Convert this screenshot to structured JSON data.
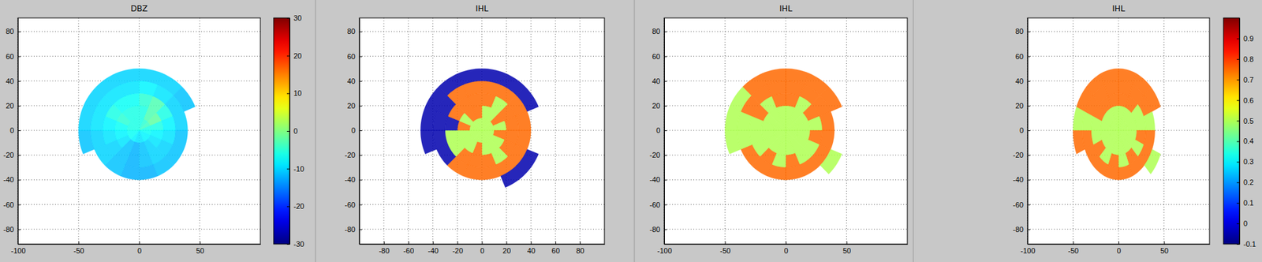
{
  "chart_data": [
    {
      "type": "polar_heatmap",
      "title": "DBZ",
      "xlim": [
        -100,
        100
      ],
      "ylim": [
        -92,
        91
      ],
      "xticks": [
        -100,
        -50,
        0,
        50
      ],
      "yticks": [
        -80,
        -60,
        -40,
        -20,
        0,
        20,
        40,
        60,
        80
      ],
      "grid": true,
      "azimuth_edges": [
        0,
        22.5,
        45,
        67.5,
        90,
        112.5,
        135,
        157.5,
        180,
        202.5,
        225,
        247.5,
        270,
        292.5,
        315,
        337.5,
        360
      ],
      "range_edges": [
        0,
        10,
        20,
        30,
        40,
        50
      ],
      "cells": [
        [
          -6,
          -5,
          -4,
          -6,
          -7,
          -8,
          -8,
          -9,
          -9,
          -8,
          -7,
          -7,
          -6,
          -6,
          -6,
          -6
        ],
        [
          -6,
          -3,
          -2,
          -6,
          -8,
          -9,
          -10,
          -11,
          -12,
          -11,
          -9,
          -8,
          -7,
          -5,
          -6,
          -6
        ],
        [
          -5,
          -3,
          -6,
          -8,
          -9,
          -10,
          -10,
          -11,
          -12,
          -11,
          -10,
          -9,
          -8,
          -6,
          -7,
          -7
        ],
        [
          -8,
          -9,
          -10,
          -10,
          -11,
          -11,
          -11,
          -12,
          -12,
          -11,
          -10,
          -10,
          -9,
          -9,
          -9,
          -9
        ],
        [
          -10,
          -10,
          -11,
          null,
          null,
          null,
          null,
          null,
          null,
          null,
          null,
          -11,
          -10,
          -10,
          -10,
          -10
        ]
      ],
      "color_range": [
        -30,
        30
      ],
      "colorbar_ticks": [
        -30,
        -20,
        -10,
        0,
        10,
        20,
        30
      ]
    },
    {
      "type": "polar_heatmap",
      "title": "IHL",
      "xlim": [
        -100,
        100
      ],
      "ylim": [
        -92,
        91
      ],
      "xticks": [
        -80,
        -60,
        -40,
        -20,
        0,
        20,
        40,
        60,
        80
      ],
      "yticks": [
        -80,
        -60,
        -40,
        -20,
        0,
        20,
        40,
        60,
        80
      ],
      "grid": true,
      "azimuth_edges": [
        0,
        22.5,
        45,
        67.5,
        90,
        112.5,
        135,
        157.5,
        180,
        202.5,
        225,
        247.5,
        270,
        292.5,
        315,
        337.5,
        360
      ],
      "range_edges": [
        0,
        10,
        20,
        30,
        40,
        50
      ],
      "cells": [
        [
          0.5,
          0.5,
          0.5,
          0.5,
          0.5,
          0.5,
          0.5,
          0.5,
          0.5,
          0.5,
          0.5,
          0.5,
          0.5,
          0.5,
          0.5,
          0.5
        ],
        [
          0.5,
          0.5,
          0.75,
          0.5,
          0.75,
          0.5,
          0.5,
          0.5,
          0.75,
          0.5,
          0.5,
          0.5,
          0.75,
          0.5,
          0.75,
          0.75
        ],
        [
          0.75,
          0.5,
          0.75,
          0.75,
          0.75,
          0.75,
          0.5,
          0.75,
          0.75,
          0.75,
          0.5,
          0.5,
          -0.05,
          0.75,
          0.75,
          0.75
        ],
        [
          0.75,
          0.75,
          0.75,
          0.75,
          0.75,
          0.75,
          0.75,
          0.75,
          0.75,
          0.75,
          -0.05,
          -0.05,
          -0.05,
          -0.05,
          0.75,
          0.75
        ],
        [
          -0.05,
          -0.05,
          -0.05,
          null,
          null,
          -0.05,
          -0.05,
          null,
          null,
          null,
          null,
          -0.05,
          -0.05,
          -0.05,
          -0.05,
          -0.05
        ]
      ],
      "color_range": [
        -0.1,
        1.0
      ]
    },
    {
      "type": "polar_heatmap",
      "title": "IHL",
      "xlim": [
        -100,
        100
      ],
      "ylim": [
        -92,
        91
      ],
      "xticks": [
        -100,
        -50,
        0,
        50
      ],
      "yticks": [
        -80,
        -60,
        -40,
        -20,
        0,
        20,
        40,
        60,
        80
      ],
      "grid": true,
      "azimuth_edges": [
        0,
        22.5,
        45,
        67.5,
        90,
        112.5,
        135,
        157.5,
        180,
        202.5,
        225,
        247.5,
        270,
        292.5,
        315,
        337.5,
        360
      ],
      "range_edges": [
        0,
        10,
        20,
        30,
        40,
        50
      ],
      "cells": [
        [
          0.5,
          0.5,
          0.5,
          0.5,
          0.5,
          0.5,
          0.5,
          0.5,
          0.5,
          0.5,
          0.5,
          0.5,
          0.5,
          0.5,
          0.5,
          0.5
        ],
        [
          0.5,
          0.5,
          0.5,
          0.5,
          0.5,
          0.5,
          0.5,
          0.5,
          0.5,
          0.5,
          0.5,
          0.5,
          0.5,
          0.5,
          0.5,
          0.5
        ],
        [
          0.75,
          0.5,
          0.75,
          0.5,
          0.75,
          0.5,
          0.5,
          0.75,
          0.5,
          0.75,
          0.5,
          0.5,
          0.5,
          0.75,
          0.5,
          0.75
        ],
        [
          0.75,
          0.75,
          0.75,
          0.75,
          0.75,
          0.75,
          0.75,
          0.75,
          0.75,
          0.75,
          0.75,
          0.5,
          0.5,
          0.75,
          0.75,
          0.75
        ],
        [
          0.75,
          0.75,
          0.75,
          null,
          null,
          0.5,
          null,
          null,
          null,
          null,
          null,
          0.5,
          0.5,
          0.5,
          0.75,
          0.75
        ]
      ],
      "color_range": [
        -0.1,
        1.0
      ]
    },
    {
      "type": "polar_heatmap",
      "title": "IHL",
      "xlim": [
        -100,
        100
      ],
      "ylim": [
        -92,
        91
      ],
      "xticks": [
        -100,
        -50,
        0,
        50
      ],
      "yticks": [
        -80,
        -60,
        -40,
        -20,
        0,
        20,
        40,
        60,
        80
      ],
      "grid": true,
      "azimuth_edges": [
        0,
        22.5,
        45,
        67.5,
        90,
        112.5,
        135,
        157.5,
        180,
        202.5,
        225,
        247.5,
        270,
        292.5,
        315,
        337.5,
        360
      ],
      "range_edges": [
        0,
        10,
        20,
        30,
        40,
        50
      ],
      "cells": [
        [
          0.5,
          0.5,
          0.5,
          0.5,
          0.5,
          0.5,
          0.5,
          0.5,
          0.5,
          0.5,
          0.5,
          0.5,
          0.5,
          0.5,
          0.5,
          0.5
        ],
        [
          0.5,
          0.5,
          0.5,
          0.5,
          0.5,
          0.5,
          0.5,
          0.5,
          0.5,
          0.5,
          0.5,
          0.5,
          0.5,
          0.5,
          0.5,
          0.5
        ],
        [
          0.75,
          0.75,
          0.5,
          0.5,
          0.75,
          0.5,
          0.75,
          0.5,
          0.75,
          0.5,
          0.75,
          0.5,
          0.5,
          0.75,
          0.75,
          0.75
        ],
        [
          0.75,
          0.75,
          0.75,
          0.5,
          0.75,
          0.75,
          0.75,
          0.75,
          0.75,
          0.75,
          0.75,
          0.75,
          0.5,
          0.75,
          0.75,
          0.75
        ],
        [
          0.75,
          0.75,
          0.75,
          null,
          null,
          0.5,
          null,
          null,
          null,
          null,
          null,
          0.75,
          0.5,
          0.75,
          0.75,
          0.75
        ]
      ],
      "color_range": [
        -0.1,
        1.0
      ],
      "colorbar_ticks": [
        -0.1,
        0,
        0.1,
        0.2,
        0.3,
        0.4,
        0.5,
        0.6,
        0.7,
        0.8,
        0.9
      ]
    }
  ]
}
